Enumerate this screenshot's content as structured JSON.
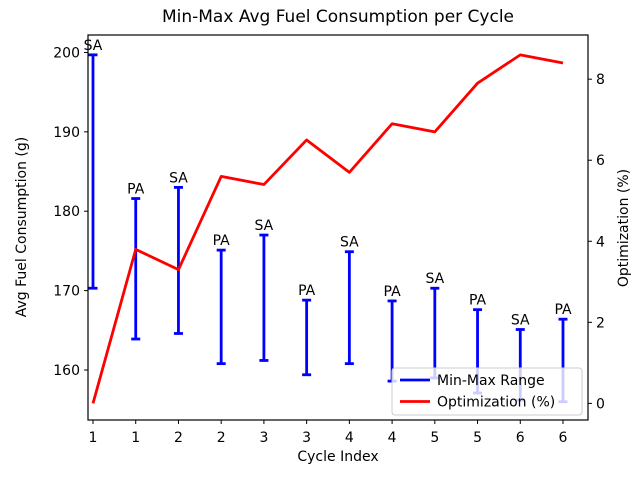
{
  "chart_data": {
    "type": "line+errorbar",
    "title": "Min-Max Avg Fuel Consumption per Cycle",
    "xlabel": "Cycle Index",
    "left_ylabel": "Avg Fuel Consumption (g)",
    "right_ylabel": "Optimization (%)",
    "x_ticklabels": [
      "1",
      "1",
      "2",
      "2",
      "3",
      "3",
      "4",
      "4",
      "5",
      "5",
      "6",
      "6"
    ],
    "left_yticks": [
      160,
      170,
      180,
      190,
      200
    ],
    "right_yticks": [
      0,
      2,
      4,
      6,
      8
    ],
    "left_ylim": [
      153.7,
      202.2
    ],
    "right_ylim": [
      -0.41,
      9.09
    ],
    "grid": false,
    "legend_position": "lower right",
    "points": [
      {
        "cycle": "1",
        "algo": "SA",
        "min": 170.3,
        "max": 199.7,
        "optimization": 0.0
      },
      {
        "cycle": "1",
        "algo": "PA",
        "min": 163.9,
        "max": 181.6,
        "optimization": 3.8
      },
      {
        "cycle": "2",
        "algo": "SA",
        "min": 164.6,
        "max": 183.0,
        "optimization": 3.3
      },
      {
        "cycle": "2",
        "algo": "PA",
        "min": 160.8,
        "max": 175.1,
        "optimization": 5.6
      },
      {
        "cycle": "3",
        "algo": "SA",
        "min": 161.2,
        "max": 177.0,
        "optimization": 5.4
      },
      {
        "cycle": "3",
        "algo": "PA",
        "min": 159.4,
        "max": 168.8,
        "optimization": 6.5
      },
      {
        "cycle": "4",
        "algo": "SA",
        "min": 160.8,
        "max": 174.9,
        "optimization": 5.7
      },
      {
        "cycle": "4",
        "algo": "PA",
        "min": 158.6,
        "max": 168.7,
        "optimization": 6.9
      },
      {
        "cycle": "5",
        "algo": "SA",
        "min": 159.0,
        "max": 170.3,
        "optimization": 6.7
      },
      {
        "cycle": "5",
        "algo": "PA",
        "min": 157.1,
        "max": 167.6,
        "optimization": 7.9
      },
      {
        "cycle": "6",
        "algo": "SA",
        "min": 156.2,
        "max": 165.1,
        "optimization": 8.6
      },
      {
        "cycle": "6",
        "algo": "PA",
        "min": 156.0,
        "max": 166.4,
        "optimization": 8.4
      }
    ],
    "legend": [
      {
        "label": "Min-Max Range",
        "color": "#0000ff"
      },
      {
        "label": "Optimization (%)",
        "color": "#ff0000"
      }
    ],
    "colors": {
      "range_bar": "#0000ff",
      "optimization_line": "#ff0000",
      "text": "#000000",
      "spine": "#000000",
      "legend_border": "#cccccc",
      "legend_fill": "rgba(255,255,255,0.8)",
      "background": "#ffffff"
    }
  }
}
